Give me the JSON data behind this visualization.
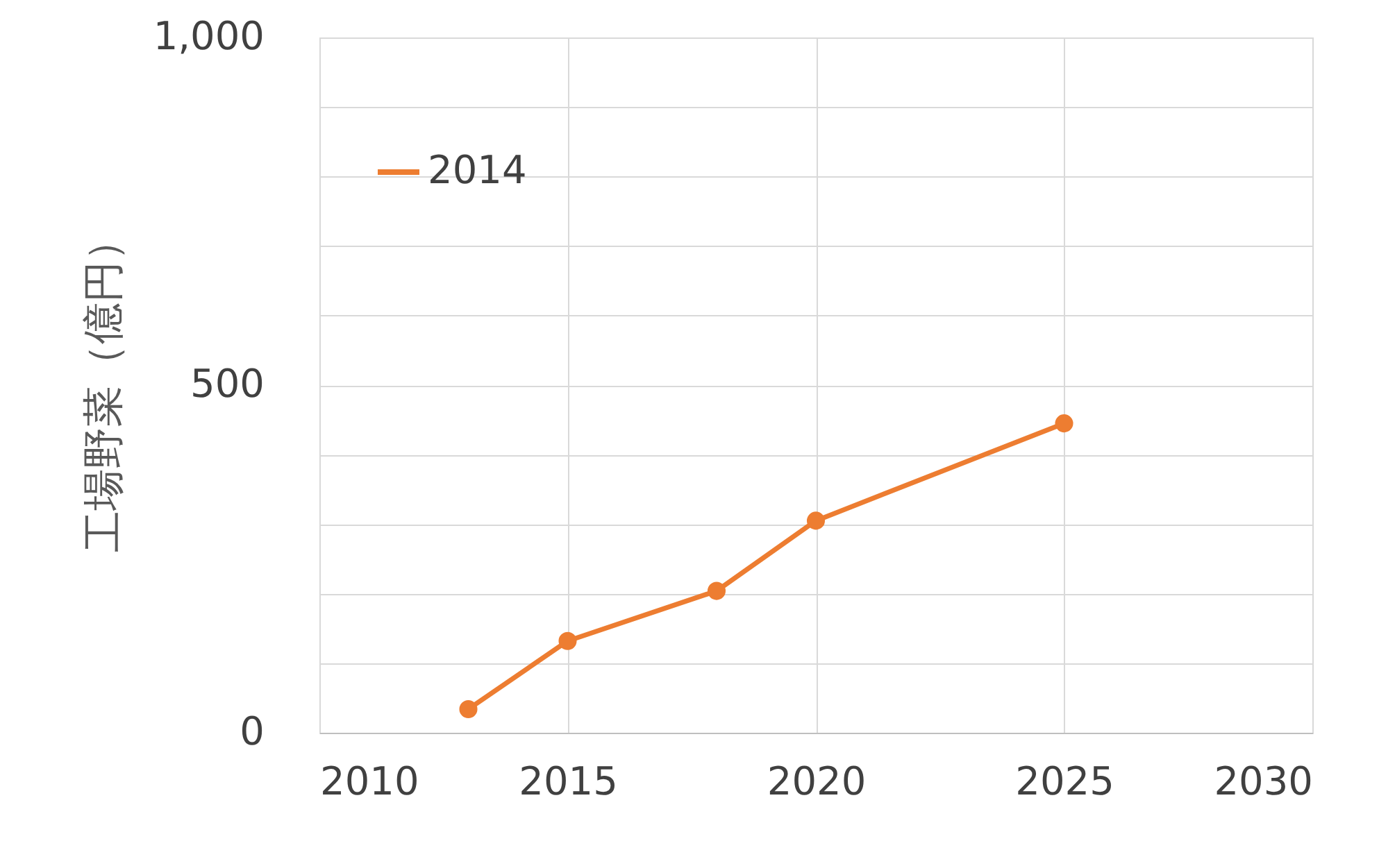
{
  "chart_data": {
    "type": "line",
    "ylabel": "工場野菜（億円）",
    "x": [
      2013,
      2015,
      2018,
      2020,
      2025
    ],
    "series": [
      {
        "name": "2014",
        "color": "#ed7d31",
        "values": [
          34,
          132,
          204,
          305,
          445
        ]
      }
    ],
    "xlim": [
      2010,
      2030
    ],
    "xticks": [
      2010,
      2015,
      2020,
      2025,
      2030
    ],
    "ylim": [
      0,
      1000
    ],
    "yticks": [
      0,
      {
        "value": 100,
        "label": null
      },
      {
        "value": 200,
        "label": null
      },
      {
        "value": 300,
        "label": null
      },
      {
        "value": 400,
        "label": null
      },
      500,
      {
        "value": 600,
        "label": null
      },
      {
        "value": 700,
        "label": null
      },
      {
        "value": 800,
        "label": null
      },
      {
        "value": 900,
        "label": null
      },
      {
        "value": 1000,
        "label": "1,000"
      }
    ],
    "grid": true,
    "legend": "top left",
    "marker": "circle",
    "line_style": "solid"
  }
}
